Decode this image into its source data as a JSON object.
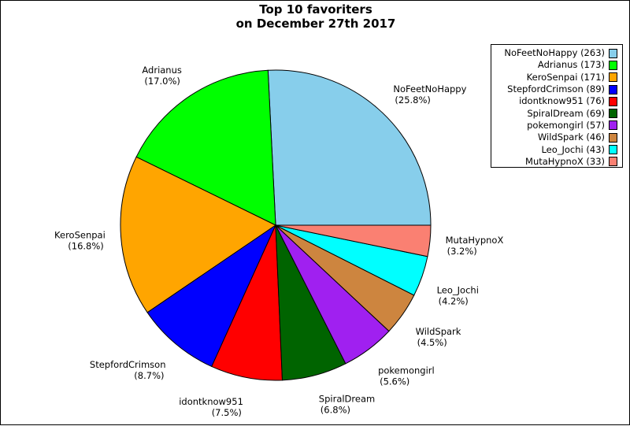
{
  "chart_data": {
    "type": "pie",
    "title_lines": [
      "Top 10 favoriters",
      "on December 27th 2017"
    ],
    "legend_position": "top-right",
    "slices": [
      {
        "name": "NoFeetNoHappy",
        "value": 263,
        "percent_label": "(25.8%)",
        "legend_label": "NoFeetNoHappy (263)",
        "color": "#87CEEB"
      },
      {
        "name": "Adrianus",
        "value": 173,
        "percent_label": "(17.0%)",
        "legend_label": "Adrianus (173)",
        "color": "#00FF00"
      },
      {
        "name": "KeroSenpai",
        "value": 171,
        "percent_label": "(16.8%)",
        "legend_label": "KeroSenpai (171)",
        "color": "#FFA500"
      },
      {
        "name": "StepfordCrimson",
        "value": 89,
        "percent_label": "(8.7%)",
        "legend_label": "StepfordCrimson (89)",
        "color": "#0000FF"
      },
      {
        "name": "idontknow951",
        "value": 76,
        "percent_label": "(7.5%)",
        "legend_label": "idontknow951 (76)",
        "color": "#FF0000"
      },
      {
        "name": "SpiralDream",
        "value": 69,
        "percent_label": "(6.8%)",
        "legend_label": "SpiralDream (69)",
        "color": "#006400"
      },
      {
        "name": "pokemongirl",
        "value": 57,
        "percent_label": "(5.6%)",
        "legend_label": "pokemongirl (57)",
        "color": "#A020F0"
      },
      {
        "name": "WildSpark",
        "value": 46,
        "percent_label": "(4.5%)",
        "legend_label": "WildSpark (46)",
        "color": "#CD853F"
      },
      {
        "name": "Leo_Jochi",
        "value": 43,
        "percent_label": "(4.2%)",
        "legend_label": "Leo_Jochi (43)",
        "color": "#00FFFF"
      },
      {
        "name": "MutaHypnoX",
        "value": 33,
        "percent_label": "(3.2%)",
        "legend_label": "MutaHypnoX (33)",
        "color": "#FA8072"
      }
    ]
  }
}
